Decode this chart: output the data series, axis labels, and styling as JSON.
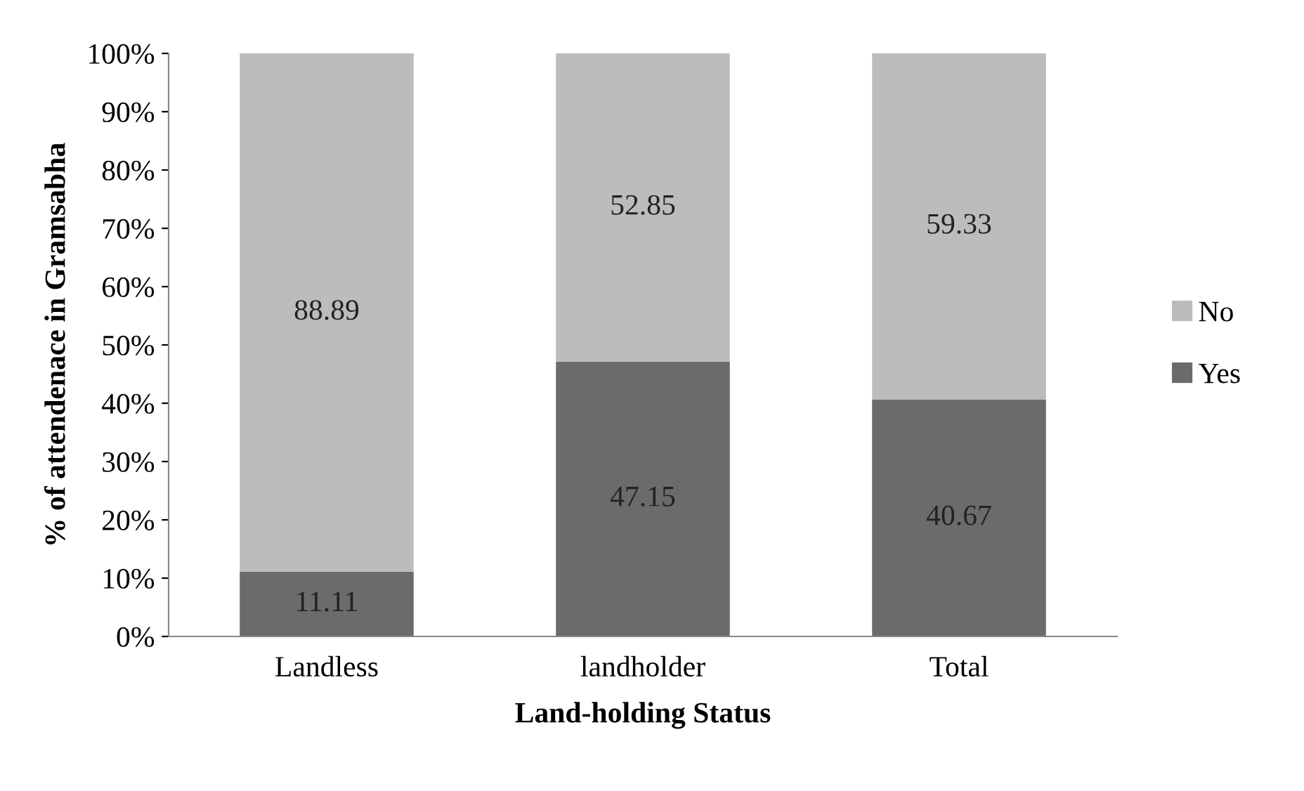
{
  "chart_data": {
    "type": "bar",
    "stacked": true,
    "xlabel": "Land-holding Status",
    "ylabel": "% of attendenace in Gramsabha",
    "categories": [
      "Landless",
      "landholder",
      "Total"
    ],
    "series": [
      {
        "name": "Yes",
        "color": "#6b6b6b",
        "values": [
          11.11,
          47.15,
          40.67
        ]
      },
      {
        "name": "No",
        "color": "#bcbcbc",
        "values": [
          88.89,
          52.85,
          59.33
        ]
      }
    ],
    "ylim": [
      0,
      100
    ],
    "yticks": [
      {
        "value": 0,
        "label": "0%"
      },
      {
        "value": 10,
        "label": "10%"
      },
      {
        "value": 20,
        "label": "20%"
      },
      {
        "value": 30,
        "label": "30%"
      },
      {
        "value": 40,
        "label": "40%"
      },
      {
        "value": 50,
        "label": "50%"
      },
      {
        "value": 60,
        "label": "60%"
      },
      {
        "value": 70,
        "label": "70%"
      },
      {
        "value": 80,
        "label": "80%"
      },
      {
        "value": 90,
        "label": "90%"
      },
      {
        "value": 100,
        "label": "100%"
      }
    ],
    "data_labels": true,
    "legend": "right",
    "grid": false
  }
}
